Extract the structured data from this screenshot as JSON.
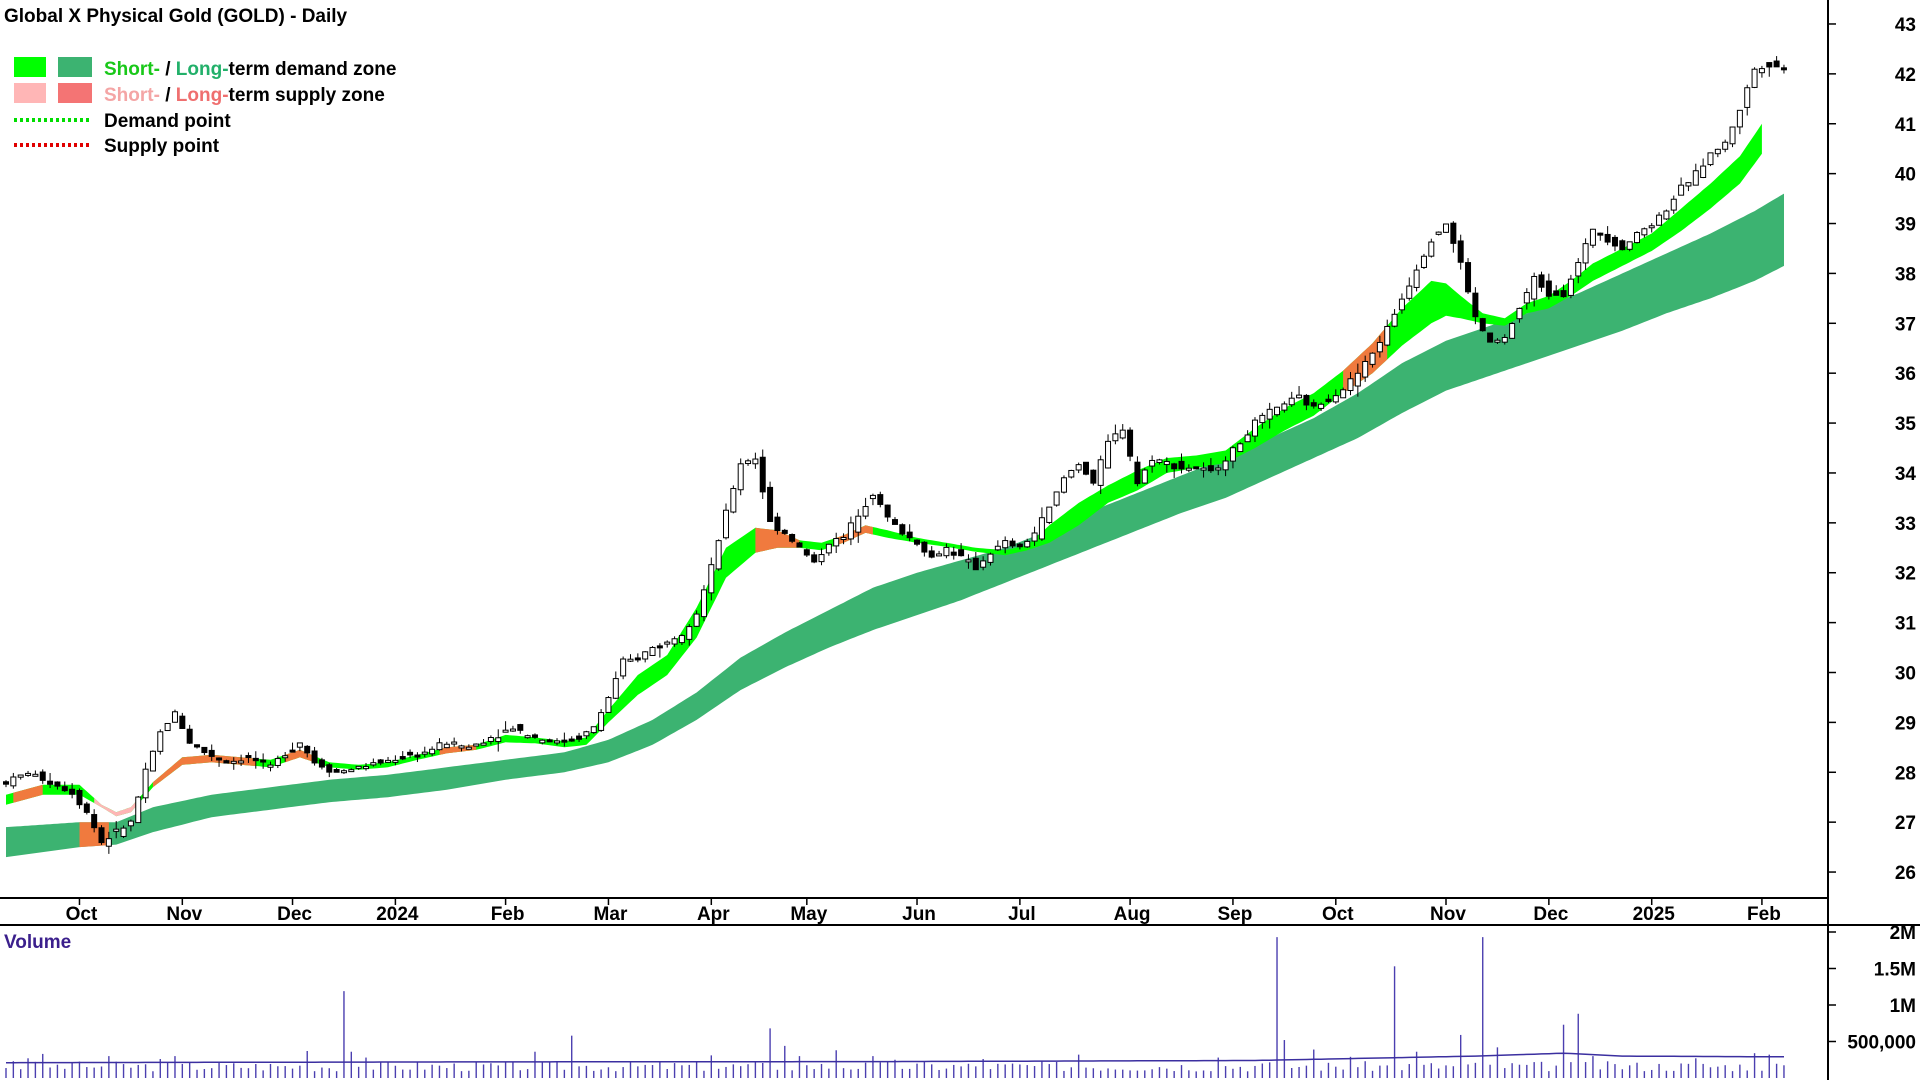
{
  "chart_data": {
    "type": "candlestick",
    "title": "Global X Physical Gold (GOLD) - Daily",
    "legend": {
      "placement": "top-left",
      "entries": [
        {
          "prefix": "Short-",
          "sep": " / ",
          "mid": "Long-",
          "suffix": "term demand zone",
          "prefix_color": "#19c819",
          "mid_color": "#22b06a",
          "suffix_color": "#000000",
          "swatches": [
            "#00ff00",
            "#3cb371"
          ]
        },
        {
          "prefix": "Short-",
          "sep": " / ",
          "mid": "Long-",
          "suffix": "term supply zone",
          "prefix_color": "#f4a5a5",
          "mid_color": "#ef6f6f",
          "suffix_color": "#000000",
          "swatches": [
            "#ffb6b6",
            "#f47474"
          ]
        },
        {
          "label": "Demand point",
          "line_color": "#00dd00",
          "dotted": true
        },
        {
          "label": "Supply point",
          "line_color": "#e00000",
          "dotted": true
        }
      ]
    },
    "x_axis": {
      "ticks": [
        {
          "label": "Oct",
          "t": 10
        },
        {
          "label": "Nov",
          "t": 24
        },
        {
          "label": "Dec",
          "t": 39
        },
        {
          "label": "2024",
          "t": 53
        },
        {
          "label": "Feb",
          "t": 68
        },
        {
          "label": "Mar",
          "t": 82
        },
        {
          "label": "Apr",
          "t": 96
        },
        {
          "label": "May",
          "t": 109
        },
        {
          "label": "Jun",
          "t": 124
        },
        {
          "label": "Jul",
          "t": 138
        },
        {
          "label": "Aug",
          "t": 153
        },
        {
          "label": "Sep",
          "t": 167
        },
        {
          "label": "Oct",
          "t": 181
        },
        {
          "label": "Nov",
          "t": 196
        },
        {
          "label": "Dec",
          "t": 210
        },
        {
          "label": "2025",
          "t": 224
        },
        {
          "label": "Feb",
          "t": 239
        }
      ],
      "range": [
        0,
        245
      ]
    },
    "y_axis": {
      "position": "right",
      "ylim": [
        25.6,
        43.2
      ],
      "ticks": [
        26,
        27,
        28,
        29,
        30,
        31,
        32,
        33,
        34,
        35,
        36,
        37,
        38,
        39,
        40,
        41,
        42,
        43
      ]
    },
    "price_path": [
      [
        0,
        27.8
      ],
      [
        3,
        28.0
      ],
      [
        6,
        27.8
      ],
      [
        9,
        27.6
      ],
      [
        11,
        27.2
      ],
      [
        13,
        26.6
      ],
      [
        15,
        26.8
      ],
      [
        17,
        27.0
      ],
      [
        19,
        28.0
      ],
      [
        21,
        28.8
      ],
      [
        23,
        29.2
      ],
      [
        25,
        28.6
      ],
      [
        27,
        28.4
      ],
      [
        30,
        28.2
      ],
      [
        33,
        28.3
      ],
      [
        36,
        28.1
      ],
      [
        38,
        28.4
      ],
      [
        40,
        28.6
      ],
      [
        42,
        28.2
      ],
      [
        45,
        28.0
      ],
      [
        48,
        28.1
      ],
      [
        51,
        28.2
      ],
      [
        54,
        28.3
      ],
      [
        57,
        28.4
      ],
      [
        60,
        28.6
      ],
      [
        63,
        28.5
      ],
      [
        66,
        28.7
      ],
      [
        69,
        28.9
      ],
      [
        72,
        28.7
      ],
      [
        75,
        28.6
      ],
      [
        78,
        28.7
      ],
      [
        80,
        28.9
      ],
      [
        82,
        29.5
      ],
      [
        84,
        30.2
      ],
      [
        86,
        30.3
      ],
      [
        88,
        30.5
      ],
      [
        90,
        30.6
      ],
      [
        92,
        30.8
      ],
      [
        94,
        31.2
      ],
      [
        96,
        32.1
      ],
      [
        98,
        33.2
      ],
      [
        100,
        34.2
      ],
      [
        102,
        34.3
      ],
      [
        104,
        33.0
      ],
      [
        106,
        32.8
      ],
      [
        108,
        32.5
      ],
      [
        110,
        32.2
      ],
      [
        112,
        32.6
      ],
      [
        114,
        32.7
      ],
      [
        116,
        33.2
      ],
      [
        118,
        33.6
      ],
      [
        120,
        33.1
      ],
      [
        122,
        32.8
      ],
      [
        124,
        32.6
      ],
      [
        126,
        32.3
      ],
      [
        128,
        32.5
      ],
      [
        130,
        32.3
      ],
      [
        132,
        32.1
      ],
      [
        134,
        32.4
      ],
      [
        136,
        32.6
      ],
      [
        138,
        32.5
      ],
      [
        140,
        32.8
      ],
      [
        142,
        33.3
      ],
      [
        144,
        33.9
      ],
      [
        146,
        34.2
      ],
      [
        148,
        33.8
      ],
      [
        150,
        34.6
      ],
      [
        152,
        34.9
      ],
      [
        154,
        33.8
      ],
      [
        156,
        34.3
      ],
      [
        158,
        34.2
      ],
      [
        160,
        34.1
      ],
      [
        162,
        34.1
      ],
      [
        164,
        34.0
      ],
      [
        166,
        34.3
      ],
      [
        168,
        34.6
      ],
      [
        170,
        35.0
      ],
      [
        172,
        35.2
      ],
      [
        174,
        35.4
      ],
      [
        176,
        35.5
      ],
      [
        178,
        35.3
      ],
      [
        180,
        35.5
      ],
      [
        182,
        35.7
      ],
      [
        184,
        36.0
      ],
      [
        186,
        36.4
      ],
      [
        188,
        36.9
      ],
      [
        190,
        37.5
      ],
      [
        192,
        38.1
      ],
      [
        194,
        38.7
      ],
      [
        196,
        39.0
      ],
      [
        198,
        38.2
      ],
      [
        200,
        37.1
      ],
      [
        202,
        36.6
      ],
      [
        204,
        36.7
      ],
      [
        206,
        37.3
      ],
      [
        208,
        37.9
      ],
      [
        210,
        37.6
      ],
      [
        212,
        37.6
      ],
      [
        214,
        38.2
      ],
      [
        216,
        38.9
      ],
      [
        218,
        38.7
      ],
      [
        220,
        38.5
      ],
      [
        222,
        38.8
      ],
      [
        224,
        39.0
      ],
      [
        226,
        39.3
      ],
      [
        228,
        39.7
      ],
      [
        230,
        40.0
      ],
      [
        232,
        40.4
      ],
      [
        234,
        40.6
      ],
      [
        236,
        41.3
      ],
      [
        238,
        42.1
      ],
      [
        240,
        42.2
      ],
      [
        242,
        42.1
      ]
    ],
    "short_zone": [
      [
        0,
        27.55,
        27.35
      ],
      [
        5,
        27.75,
        27.55
      ],
      [
        10,
        27.75,
        27.55
      ],
      [
        13,
        27.35,
        27.3
      ],
      [
        15,
        27.2,
        27.12
      ],
      [
        17,
        27.3,
        27.2
      ],
      [
        20,
        27.8,
        27.7
      ],
      [
        24,
        28.3,
        28.15
      ],
      [
        28,
        28.35,
        28.2
      ],
      [
        32,
        28.3,
        28.15
      ],
      [
        36,
        28.25,
        28.1
      ],
      [
        40,
        28.45,
        28.3
      ],
      [
        44,
        28.2,
        28.1
      ],
      [
        48,
        28.15,
        28.05
      ],
      [
        52,
        28.2,
        28.1
      ],
      [
        56,
        28.35,
        28.25
      ],
      [
        60,
        28.5,
        28.38
      ],
      [
        64,
        28.55,
        28.45
      ],
      [
        68,
        28.75,
        28.6
      ],
      [
        72,
        28.7,
        28.58
      ],
      [
        76,
        28.62,
        28.5
      ],
      [
        79,
        28.7,
        28.55
      ],
      [
        82,
        29.25,
        29.0
      ],
      [
        86,
        29.95,
        29.55
      ],
      [
        90,
        30.35,
        29.95
      ],
      [
        94,
        31.3,
        30.7
      ],
      [
        98,
        32.5,
        31.9
      ],
      [
        102,
        32.9,
        32.4
      ],
      [
        105,
        32.85,
        32.5
      ],
      [
        108,
        32.65,
        32.5
      ],
      [
        111,
        32.6,
        32.45
      ],
      [
        114,
        32.75,
        32.6
      ],
      [
        117,
        32.95,
        32.8
      ],
      [
        120,
        32.85,
        32.7
      ],
      [
        124,
        32.7,
        32.6
      ],
      [
        128,
        32.6,
        32.52
      ],
      [
        132,
        32.5,
        32.42
      ],
      [
        136,
        32.45,
        32.35
      ],
      [
        139,
        32.55,
        32.45
      ],
      [
        142,
        32.95,
        32.6
      ],
      [
        146,
        33.4,
        32.95
      ],
      [
        150,
        33.75,
        33.4
      ],
      [
        154,
        34.05,
        33.65
      ],
      [
        158,
        34.3,
        34.0
      ],
      [
        162,
        34.35,
        34.1
      ],
      [
        166,
        34.45,
        34.2
      ],
      [
        170,
        34.9,
        34.5
      ],
      [
        174,
        35.3,
        34.85
      ],
      [
        178,
        35.6,
        35.15
      ],
      [
        182,
        36.05,
        35.6
      ],
      [
        186,
        36.6,
        36.0
      ],
      [
        190,
        37.3,
        36.55
      ],
      [
        194,
        37.85,
        37.0
      ],
      [
        196,
        37.8,
        37.15
      ],
      [
        198,
        37.55,
        37.1
      ],
      [
        201,
        37.2,
        37.0
      ],
      [
        204,
        37.1,
        36.95
      ],
      [
        207,
        37.4,
        37.2
      ],
      [
        210,
        37.55,
        37.3
      ],
      [
        213,
        37.85,
        37.55
      ],
      [
        216,
        38.2,
        37.85
      ],
      [
        220,
        38.5,
        38.15
      ],
      [
        224,
        38.8,
        38.45
      ],
      [
        228,
        39.3,
        38.85
      ],
      [
        232,
        39.8,
        39.3
      ],
      [
        236,
        40.35,
        39.8
      ],
      [
        239,
        41.0,
        40.4
      ]
    ],
    "long_zone": [
      [
        0,
        26.9,
        26.3
      ],
      [
        10,
        27.0,
        26.5
      ],
      [
        15,
        27.0,
        26.55
      ],
      [
        20,
        27.3,
        26.8
      ],
      [
        28,
        27.55,
        27.1
      ],
      [
        36,
        27.7,
        27.25
      ],
      [
        44,
        27.85,
        27.4
      ],
      [
        52,
        27.95,
        27.5
      ],
      [
        60,
        28.1,
        27.65
      ],
      [
        68,
        28.25,
        27.85
      ],
      [
        76,
        28.4,
        28.0
      ],
      [
        82,
        28.65,
        28.2
      ],
      [
        88,
        29.05,
        28.55
      ],
      [
        94,
        29.6,
        29.05
      ],
      [
        100,
        30.3,
        29.65
      ],
      [
        106,
        30.8,
        30.1
      ],
      [
        112,
        31.25,
        30.5
      ],
      [
        118,
        31.7,
        30.85
      ],
      [
        124,
        32.0,
        31.15
      ],
      [
        130,
        32.25,
        31.45
      ],
      [
        136,
        32.5,
        31.8
      ],
      [
        142,
        32.85,
        32.15
      ],
      [
        148,
        33.25,
        32.5
      ],
      [
        154,
        33.6,
        32.85
      ],
      [
        160,
        33.95,
        33.2
      ],
      [
        166,
        34.3,
        33.5
      ],
      [
        172,
        34.7,
        33.9
      ],
      [
        178,
        35.1,
        34.3
      ],
      [
        184,
        35.6,
        34.7
      ],
      [
        190,
        36.2,
        35.2
      ],
      [
        196,
        36.65,
        35.65
      ],
      [
        202,
        36.95,
        35.95
      ],
      [
        208,
        37.25,
        36.25
      ],
      [
        214,
        37.6,
        36.55
      ],
      [
        220,
        38.0,
        36.85
      ],
      [
        226,
        38.4,
        37.2
      ],
      [
        232,
        38.8,
        37.5
      ],
      [
        238,
        39.25,
        37.85
      ],
      [
        242,
        39.6,
        38.15
      ]
    ],
    "short_supply_segments": [
      [
        1,
        5
      ],
      [
        20,
        34
      ],
      [
        38,
        42
      ],
      [
        59,
        64
      ],
      [
        102,
        108
      ],
      [
        113,
        118
      ],
      [
        182,
        188
      ]
    ],
    "long_supply_segments": [
      [
        10,
        14
      ]
    ],
    "volume": {
      "label": "Volume",
      "ylim": [
        0,
        2000000
      ],
      "ticks": [
        {
          "label": "2M",
          "v": 2000000
        },
        {
          "label": "1.5M",
          "v": 1500000
        },
        {
          "label": "1M",
          "v": 1000000
        },
        {
          "label": "500,000",
          "v": 500000
        }
      ],
      "baseline": 200000,
      "spikes": [
        [
          1,
          230000
        ],
        [
          3,
          270000
        ],
        [
          5,
          330000
        ],
        [
          9,
          210000
        ],
        [
          14,
          300000
        ],
        [
          21,
          260000
        ],
        [
          23,
          300000
        ],
        [
          41,
          370000
        ],
        [
          46,
          1190000
        ],
        [
          47,
          360000
        ],
        [
          49,
          280000
        ],
        [
          72,
          360000
        ],
        [
          77,
          580000
        ],
        [
          96,
          310000
        ],
        [
          104,
          680000
        ],
        [
          106,
          440000
        ],
        [
          108,
          300000
        ],
        [
          113,
          380000
        ],
        [
          118,
          300000
        ],
        [
          121,
          250000
        ],
        [
          133,
          260000
        ],
        [
          146,
          320000
        ],
        [
          165,
          280000
        ],
        [
          173,
          1930000
        ],
        [
          174,
          520000
        ],
        [
          178,
          390000
        ],
        [
          183,
          290000
        ],
        [
          189,
          1530000
        ],
        [
          192,
          360000
        ],
        [
          198,
          590000
        ],
        [
          201,
          1930000
        ],
        [
          203,
          420000
        ],
        [
          212,
          730000
        ],
        [
          214,
          880000
        ],
        [
          216,
          300000
        ],
        [
          230,
          270000
        ],
        [
          238,
          340000
        ],
        [
          240,
          320000
        ]
      ],
      "avg_path": [
        [
          0,
          210000
        ],
        [
          60,
          220000
        ],
        [
          120,
          225000
        ],
        [
          170,
          240000
        ],
        [
          190,
          280000
        ],
        [
          200,
          300000
        ],
        [
          212,
          340000
        ],
        [
          220,
          300000
        ],
        [
          242,
          290000
        ]
      ]
    }
  }
}
